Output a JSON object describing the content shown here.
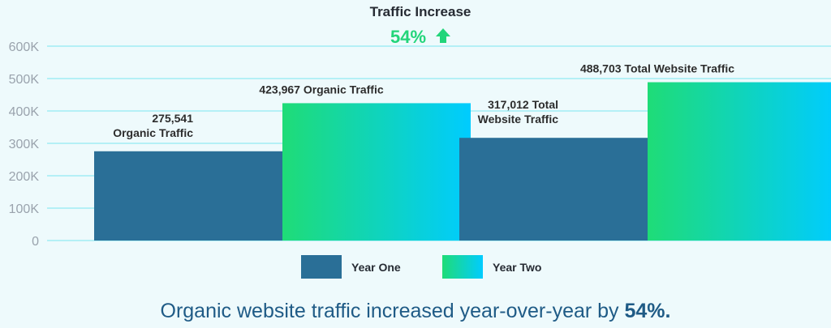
{
  "colors": {
    "year_one": "#2a6f97",
    "year_two_start": "#1fdc77",
    "year_two_end": "#00ccff",
    "grid": "#7ae6ef",
    "accent_green": "#22d57a",
    "caption": "#1f5b86"
  },
  "header": {
    "title": "Traffic Increase",
    "increase_pct": "54%",
    "increase_icon": "up-arrow-icon"
  },
  "caption": {
    "text": "Organic website traffic increased year-over-year by ",
    "highlight": "54%."
  },
  "chart_data": {
    "type": "bar",
    "title": "Traffic Increase",
    "categories": [
      "Organic Traffic",
      "Total Website Traffic"
    ],
    "series": [
      {
        "name": "Year One",
        "values": [
          275541,
          317012
        ]
      },
      {
        "name": "Year Two",
        "values": [
          423967,
          488703
        ]
      }
    ],
    "data_labels": [
      [
        "275,541",
        "Organic Traffic"
      ],
      [
        "423,967 Organic Traffic"
      ],
      [
        "317,012 Total",
        "Website Traffic"
      ],
      [
        "488,703 Total Website Traffic"
      ]
    ],
    "yticks": [
      "0",
      "100K",
      "200K",
      "300K",
      "400K",
      "500K",
      "600K"
    ],
    "ylim": [
      0,
      600000
    ],
    "grid": true,
    "legend": "bottom-center"
  }
}
